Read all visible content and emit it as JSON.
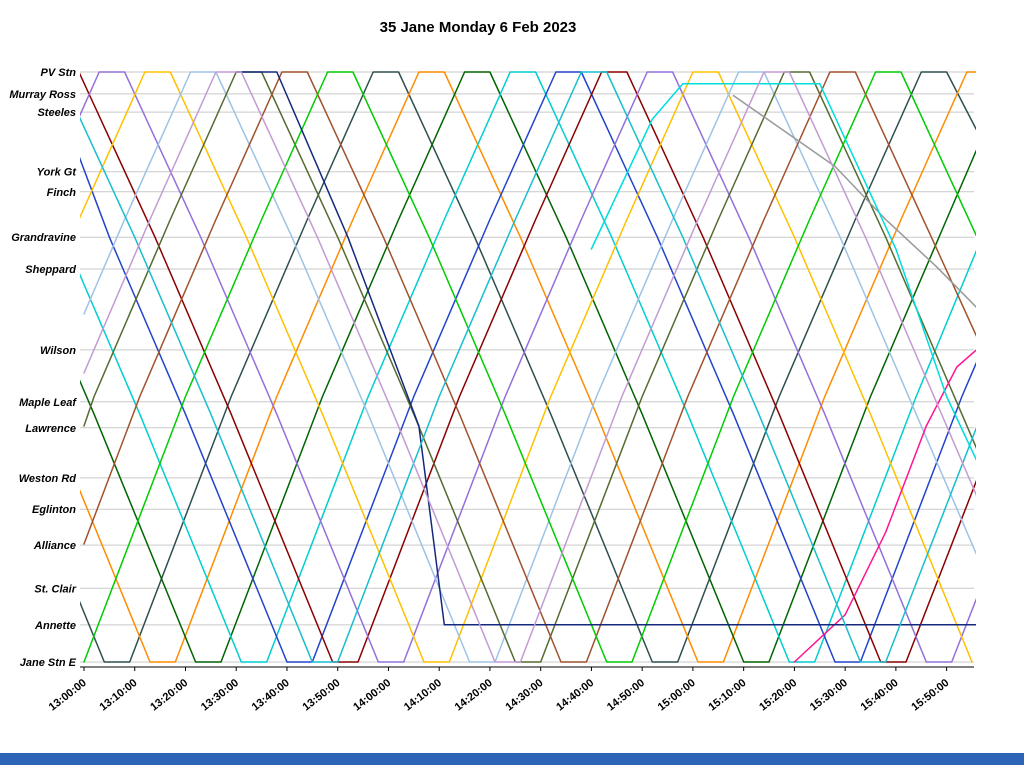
{
  "page": {
    "title": "35 Jane Monday 6 Feb 2023"
  },
  "footer": {
    "bar_color": "#2e64b5"
  },
  "chart_data": {
    "type": "line",
    "subtype": "stringline-time-distance",
    "title": "35 Jane Monday 6 Feb 2023",
    "xlabel": "",
    "ylabel": "",
    "grid": "horizontal",
    "legend": "none",
    "x_axis": {
      "unit": "time-of-day",
      "domain_minutes": [
        0,
        175
      ],
      "minutes_per_tick": 10,
      "ticks": [
        "13:00:00",
        "13:10:00",
        "13:20:00",
        "13:30:00",
        "13:40:00",
        "13:50:00",
        "14:00:00",
        "14:10:00",
        "14:20:00",
        "14:30:00",
        "14:40:00",
        "14:50:00",
        "15:00:00",
        "15:10:00",
        "15:20:00",
        "15:30:00",
        "15:40:00",
        "15:50:00"
      ]
    },
    "y_axis": {
      "direction": "top-is-north-terminal",
      "stations": [
        {
          "name": "PV Stn",
          "pos": 0.0
        },
        {
          "name": "Murray Ross",
          "pos": 0.037
        },
        {
          "name": "Steeles",
          "pos": 0.068
        },
        {
          "name": "York Gt",
          "pos": 0.169
        },
        {
          "name": "Finch",
          "pos": 0.203
        },
        {
          "name": "Grandravine",
          "pos": 0.28
        },
        {
          "name": "Sheppard",
          "pos": 0.334
        },
        {
          "name": "Wilson",
          "pos": 0.471
        },
        {
          "name": "Maple Leaf",
          "pos": 0.559
        },
        {
          "name": "Lawrence",
          "pos": 0.603
        },
        {
          "name": "Weston Rd",
          "pos": 0.688
        },
        {
          "name": "Eglinton",
          "pos": 0.741
        },
        {
          "name": "Alliance",
          "pos": 0.802
        },
        {
          "name": "St. Clair",
          "pos": 0.875
        },
        {
          "name": "Annette",
          "pos": 0.937
        },
        {
          "name": "Jane Stn E",
          "pos": 1.0
        }
      ]
    },
    "series": [
      {
        "name": "run-01",
        "color": "#2f4f4f",
        "points": [
          [
            -16,
            0.58
          ],
          [
            4,
            1.0
          ],
          [
            9,
            1.0
          ],
          [
            29,
            0.55
          ],
          [
            44,
            0.25
          ],
          [
            57,
            0
          ],
          [
            62,
            0
          ],
          [
            77,
            0.28
          ],
          [
            92,
            0.58
          ],
          [
            112,
            1.0
          ],
          [
            117,
            1.0
          ],
          [
            137,
            0.55
          ],
          [
            152,
            0.25
          ],
          [
            165,
            0
          ],
          [
            170,
            0
          ],
          [
            176,
            0.1
          ]
        ]
      },
      {
        "name": "run-02",
        "color": "#ff8c00",
        "points": [
          [
            -7,
            0.58
          ],
          [
            13,
            1.0
          ],
          [
            18,
            1.0
          ],
          [
            38,
            0.55
          ],
          [
            53,
            0.25
          ],
          [
            66,
            0
          ],
          [
            71,
            0
          ],
          [
            86,
            0.28
          ],
          [
            101,
            0.58
          ],
          [
            121,
            1.0
          ],
          [
            126,
            1.0
          ],
          [
            146,
            0.55
          ],
          [
            161,
            0.25
          ],
          [
            174,
            0
          ],
          [
            176,
            0
          ]
        ]
      },
      {
        "name": "run-03",
        "color": "#006400",
        "points": [
          [
            -13,
            0.28
          ],
          [
            2,
            0.58
          ],
          [
            22,
            1.0
          ],
          [
            27,
            1.0
          ],
          [
            47,
            0.55
          ],
          [
            62,
            0.25
          ],
          [
            75,
            0
          ],
          [
            80,
            0
          ],
          [
            95,
            0.28
          ],
          [
            110,
            0.58
          ],
          [
            130,
            1.0
          ],
          [
            135,
            1.0
          ],
          [
            155,
            0.55
          ],
          [
            170,
            0.25
          ],
          [
            176,
            0.13
          ]
        ]
      },
      {
        "name": "run-04",
        "color": "#00ced1",
        "points": [
          [
            -4,
            0.28
          ],
          [
            11,
            0.58
          ],
          [
            31,
            1.0
          ],
          [
            36,
            1.0
          ],
          [
            56,
            0.55
          ],
          [
            71,
            0.25
          ],
          [
            84,
            0
          ],
          [
            89,
            0
          ],
          [
            104,
            0.28
          ],
          [
            119,
            0.58
          ],
          [
            139,
            1.0
          ],
          [
            144,
            1.0
          ],
          [
            164,
            0.55
          ],
          [
            176,
            0.3
          ]
        ]
      },
      {
        "name": "run-05",
        "color": "#2244cc",
        "points": [
          [
            -2,
            0.12
          ],
          [
            5,
            0.28
          ],
          [
            20,
            0.58
          ],
          [
            40,
            1.0
          ],
          [
            45,
            1.0
          ],
          [
            65,
            0.55
          ],
          [
            80,
            0.25
          ],
          [
            93,
            0
          ],
          [
            98,
            0
          ],
          [
            113,
            0.28
          ],
          [
            128,
            0.58
          ],
          [
            148,
            1.0
          ],
          [
            153,
            1.0
          ],
          [
            173,
            0.55
          ],
          [
            176,
            0.49
          ]
        ]
      },
      {
        "name": "run-06",
        "color": "#8b0000",
        "points": [
          [
            -1,
            0
          ],
          [
            14,
            0.28
          ],
          [
            29,
            0.58
          ],
          [
            49,
            1.0
          ],
          [
            54,
            1.0
          ],
          [
            74,
            0.55
          ],
          [
            89,
            0.25
          ],
          [
            102,
            0
          ],
          [
            107,
            0
          ],
          [
            122,
            0.28
          ],
          [
            137,
            0.58
          ],
          [
            157,
            1.0
          ],
          [
            162,
            1.0
          ],
          [
            176,
            0.69
          ]
        ]
      },
      {
        "name": "run-07",
        "color": "#9370db",
        "points": [
          [
            -10,
            0.25
          ],
          [
            3,
            0
          ],
          [
            8,
            0
          ],
          [
            23,
            0.28
          ],
          [
            38,
            0.58
          ],
          [
            58,
            1.0
          ],
          [
            63,
            1.0
          ],
          [
            83,
            0.55
          ],
          [
            98,
            0.25
          ],
          [
            111,
            0
          ],
          [
            116,
            0
          ],
          [
            131,
            0.28
          ],
          [
            146,
            0.58
          ],
          [
            166,
            1.0
          ],
          [
            171,
            1.0
          ],
          [
            176,
            0.89
          ]
        ]
      },
      {
        "name": "run-08",
        "color": "#ffc000",
        "points": [
          [
            -1,
            0.25
          ],
          [
            12,
            0
          ],
          [
            17,
            0
          ],
          [
            32,
            0.28
          ],
          [
            47,
            0.58
          ],
          [
            67,
            1.0
          ],
          [
            72,
            1.0
          ],
          [
            92,
            0.55
          ],
          [
            107,
            0.25
          ],
          [
            120,
            0
          ],
          [
            125,
            0
          ],
          [
            140,
            0.28
          ],
          [
            155,
            0.58
          ],
          [
            175,
            1.0
          ]
        ]
      },
      {
        "name": "run-09",
        "color": "#9dc3e6",
        "points": [
          [
            0,
            0.41
          ],
          [
            8,
            0.25
          ],
          [
            21,
            0
          ],
          [
            26,
            0
          ],
          [
            41,
            0.28
          ],
          [
            56,
            0.58
          ],
          [
            76,
            1.0
          ],
          [
            81,
            1.0
          ],
          [
            101,
            0.55
          ],
          [
            116,
            0.25
          ],
          [
            129,
            0
          ],
          [
            134,
            0
          ],
          [
            149,
            0.28
          ],
          [
            164,
            0.58
          ],
          [
            176,
            0.82
          ]
        ]
      },
      {
        "name": "run-10",
        "color": "#556b2f",
        "points": [
          [
            0,
            0.6
          ],
          [
            2,
            0.55
          ],
          [
            17,
            0.25
          ],
          [
            30,
            0
          ],
          [
            35,
            0
          ],
          [
            50,
            0.28
          ],
          [
            65,
            0.58
          ],
          [
            85,
            1.0
          ],
          [
            90,
            1.0
          ],
          [
            110,
            0.55
          ],
          [
            125,
            0.25
          ],
          [
            138,
            0
          ],
          [
            143,
            0
          ],
          [
            158,
            0.28
          ],
          [
            173,
            0.58
          ],
          [
            176,
            0.64
          ]
        ]
      },
      {
        "name": "run-11",
        "color": "#a0522d",
        "points": [
          [
            0,
            0.8
          ],
          [
            11,
            0.55
          ],
          [
            26,
            0.25
          ],
          [
            39,
            0
          ],
          [
            44,
            0
          ],
          [
            59,
            0.28
          ],
          [
            74,
            0.58
          ],
          [
            94,
            1.0
          ],
          [
            99,
            1.0
          ],
          [
            119,
            0.55
          ],
          [
            134,
            0.25
          ],
          [
            147,
            0
          ],
          [
            152,
            0
          ],
          [
            167,
            0.28
          ],
          [
            176,
            0.45
          ]
        ]
      },
      {
        "name": "run-12",
        "color": "#00cc00",
        "points": [
          [
            0,
            1.0
          ],
          [
            20,
            0.55
          ],
          [
            35,
            0.25
          ],
          [
            48,
            0
          ],
          [
            53,
            0
          ],
          [
            68,
            0.28
          ],
          [
            83,
            0.58
          ],
          [
            103,
            1.0
          ],
          [
            108,
            1.0
          ],
          [
            128,
            0.55
          ],
          [
            143,
            0.25
          ],
          [
            156,
            0
          ],
          [
            161,
            0
          ],
          [
            176,
            0.28
          ]
        ]
      },
      {
        "name": "run-13",
        "color": "#999999",
        "points": [
          [
            128,
            0.04
          ],
          [
            138,
            0.1
          ],
          [
            148,
            0.16
          ],
          [
            158,
            0.25
          ],
          [
            168,
            0.33
          ],
          [
            176,
            0.4
          ]
        ]
      },
      {
        "name": "run-14",
        "color": "#ff1493",
        "points": [
          [
            140,
            1.0
          ],
          [
            150,
            0.92
          ],
          [
            158,
            0.78
          ],
          [
            166,
            0.6
          ],
          [
            172,
            0.5
          ],
          [
            176,
            0.47
          ]
        ]
      },
      {
        "name": "run-15",
        "color": "#00dddd",
        "points": [
          [
            100,
            0.3
          ],
          [
            112,
            0.08
          ],
          [
            118,
            0.02
          ],
          [
            145,
            0.02
          ],
          [
            160,
            0.3
          ],
          [
            170,
            0.55
          ],
          [
            176,
            0.66
          ]
        ]
      },
      {
        "name": "run-16",
        "color": "#14297e",
        "points": [
          [
            30,
            0.0
          ],
          [
            38,
            0.0
          ],
          [
            52,
            0.28
          ],
          [
            66,
            0.6
          ],
          [
            71,
            0.937
          ],
          [
            176,
            0.937
          ]
        ]
      },
      {
        "name": "run-17",
        "color": "#17becf",
        "points": [
          [
            -5,
            0
          ],
          [
            10,
            0.28
          ],
          [
            25,
            0.58
          ],
          [
            45,
            1.0
          ],
          [
            50,
            1.0
          ],
          [
            70,
            0.55
          ],
          [
            85,
            0.25
          ],
          [
            98,
            0
          ],
          [
            103,
            0
          ],
          [
            118,
            0.28
          ],
          [
            133,
            0.58
          ],
          [
            153,
            1.0
          ],
          [
            158,
            1.0
          ],
          [
            176,
            0.6
          ]
        ]
      },
      {
        "name": "run-18",
        "color": "#c39bd3",
        "points": [
          [
            0,
            0.51
          ],
          [
            13,
            0.25
          ],
          [
            26,
            0
          ],
          [
            31,
            0
          ],
          [
            46,
            0.28
          ],
          [
            61,
            0.58
          ],
          [
            81,
            1.0
          ],
          [
            86,
            1.0
          ],
          [
            106,
            0.55
          ],
          [
            121,
            0.25
          ],
          [
            134,
            0
          ],
          [
            139,
            0
          ],
          [
            154,
            0.28
          ],
          [
            169,
            0.58
          ],
          [
            176,
            0.72
          ]
        ]
      }
    ]
  }
}
